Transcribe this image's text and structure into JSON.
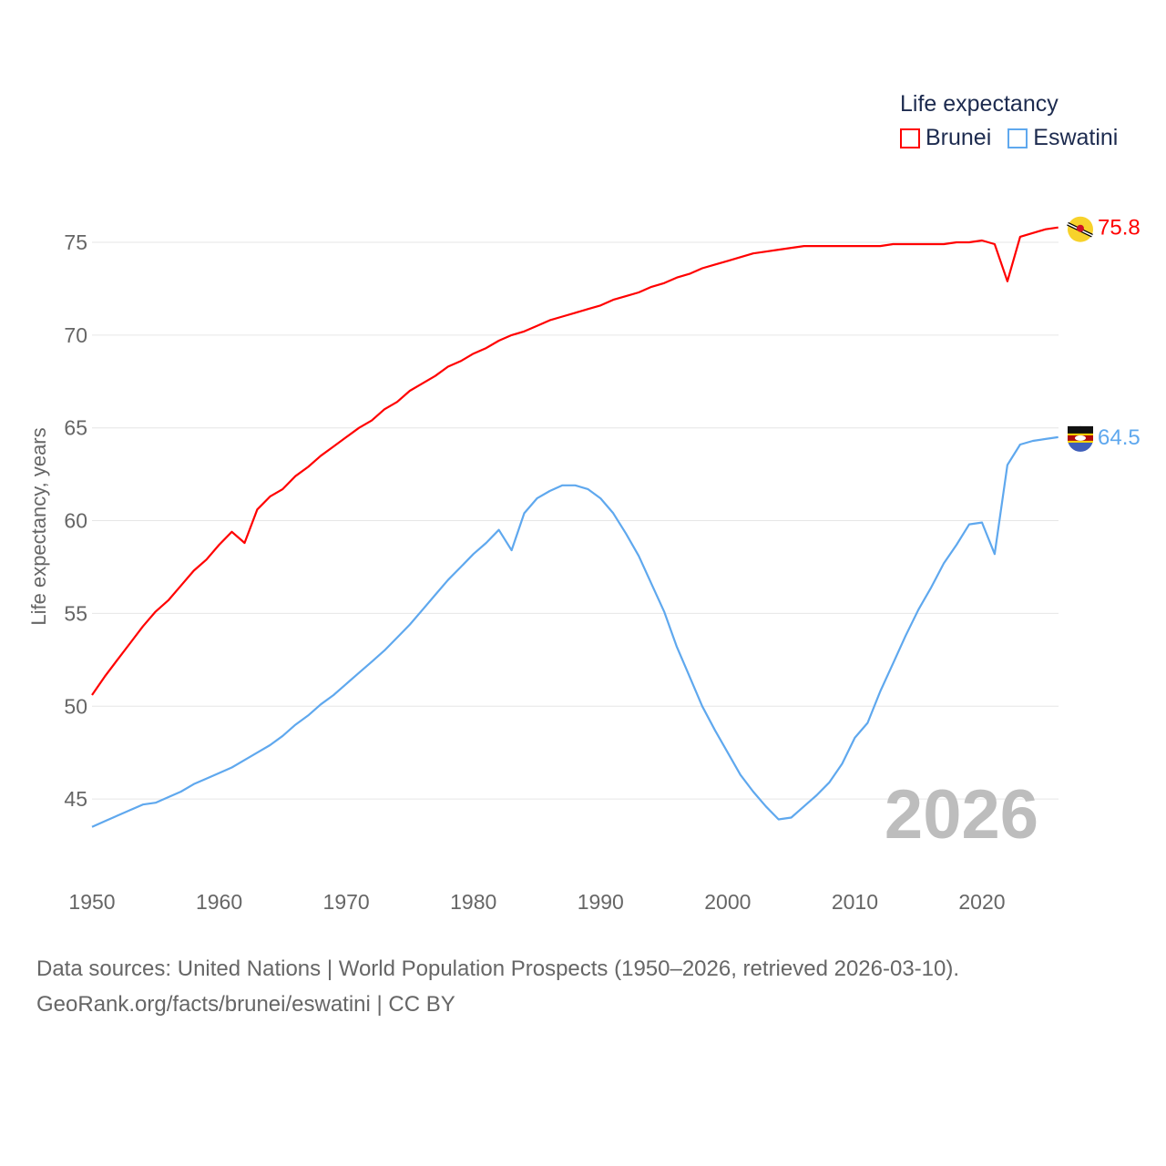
{
  "chart_data": {
    "type": "line",
    "title": "Life expectancy",
    "xlabel": "",
    "ylabel": "Life expectancy, years",
    "xlim": [
      1950,
      2026
    ],
    "ylim": [
      42.5,
      77.5
    ],
    "x_ticks": [
      "1950",
      "1960",
      "1970",
      "1980",
      "1990",
      "2000",
      "2010",
      "2020"
    ],
    "y_ticks": [
      "45",
      "50",
      "55",
      "60",
      "65",
      "70",
      "75"
    ],
    "grid": true,
    "legend_position": "top-right",
    "year_watermark": "2026",
    "x": [
      1950,
      1951,
      1952,
      1953,
      1954,
      1955,
      1956,
      1957,
      1958,
      1959,
      1960,
      1961,
      1962,
      1963,
      1964,
      1965,
      1966,
      1967,
      1968,
      1969,
      1970,
      1971,
      1972,
      1973,
      1974,
      1975,
      1976,
      1977,
      1978,
      1979,
      1980,
      1981,
      1982,
      1983,
      1984,
      1985,
      1986,
      1987,
      1988,
      1989,
      1990,
      1991,
      1992,
      1993,
      1994,
      1995,
      1996,
      1997,
      1998,
      1999,
      2000,
      2001,
      2002,
      2003,
      2004,
      2005,
      2006,
      2007,
      2008,
      2009,
      2010,
      2011,
      2012,
      2013,
      2014,
      2015,
      2016,
      2017,
      2018,
      2019,
      2020,
      2021,
      2022,
      2023,
      2024,
      2025,
      2026
    ],
    "series": [
      {
        "name": "Brunei",
        "color": "#ff0000",
        "end_label": "75.8",
        "flag": "brunei-flag",
        "values": [
          50.6,
          51.6,
          52.5,
          53.4,
          54.3,
          55.1,
          55.7,
          56.5,
          57.3,
          57.9,
          58.7,
          59.4,
          58.8,
          60.6,
          61.3,
          61.7,
          62.4,
          62.9,
          63.5,
          64.0,
          64.5,
          65.0,
          65.4,
          66.0,
          66.4,
          67.0,
          67.4,
          67.8,
          68.3,
          68.6,
          69.0,
          69.3,
          69.7,
          70.0,
          70.2,
          70.5,
          70.8,
          71.0,
          71.2,
          71.4,
          71.6,
          71.9,
          72.1,
          72.3,
          72.6,
          72.8,
          73.1,
          73.3,
          73.6,
          73.8,
          74.0,
          74.2,
          74.4,
          74.5,
          74.6,
          74.7,
          74.8,
          74.8,
          74.8,
          74.8,
          74.8,
          74.8,
          74.8,
          74.9,
          74.9,
          74.9,
          74.9,
          74.9,
          75.0,
          75.0,
          75.1,
          74.9,
          72.9,
          75.3,
          75.5,
          75.7,
          75.8
        ]
      },
      {
        "name": "Eswatini",
        "color": "#5fa8ee",
        "end_label": "64.5",
        "flag": "eswatini-flag",
        "values": [
          43.5,
          43.8,
          44.1,
          44.4,
          44.7,
          44.8,
          45.1,
          45.4,
          45.8,
          46.1,
          46.4,
          46.7,
          47.1,
          47.5,
          47.9,
          48.4,
          49.0,
          49.5,
          50.1,
          50.6,
          51.2,
          51.8,
          52.4,
          53.0,
          53.7,
          54.4,
          55.2,
          56.0,
          56.8,
          57.5,
          58.2,
          58.8,
          59.5,
          58.4,
          60.4,
          61.2,
          61.6,
          61.9,
          61.9,
          61.7,
          61.2,
          60.4,
          59.3,
          58.1,
          56.6,
          55.1,
          53.2,
          51.6,
          50.0,
          48.7,
          47.5,
          46.3,
          45.4,
          44.6,
          43.9,
          44.0,
          44.6,
          45.2,
          45.9,
          46.9,
          48.3,
          49.1,
          50.8,
          52.3,
          53.8,
          55.2,
          56.4,
          57.7,
          58.7,
          59.8,
          59.9,
          58.2,
          63.0,
          64.1,
          64.3,
          64.4,
          64.5
        ]
      }
    ]
  },
  "footer": {
    "line1": "Data sources: United Nations | World Population Prospects (1950–2026, retrieved 2026-03-10).",
    "line2": "GeoRank.org/facts/brunei/eswatini | CC BY"
  }
}
